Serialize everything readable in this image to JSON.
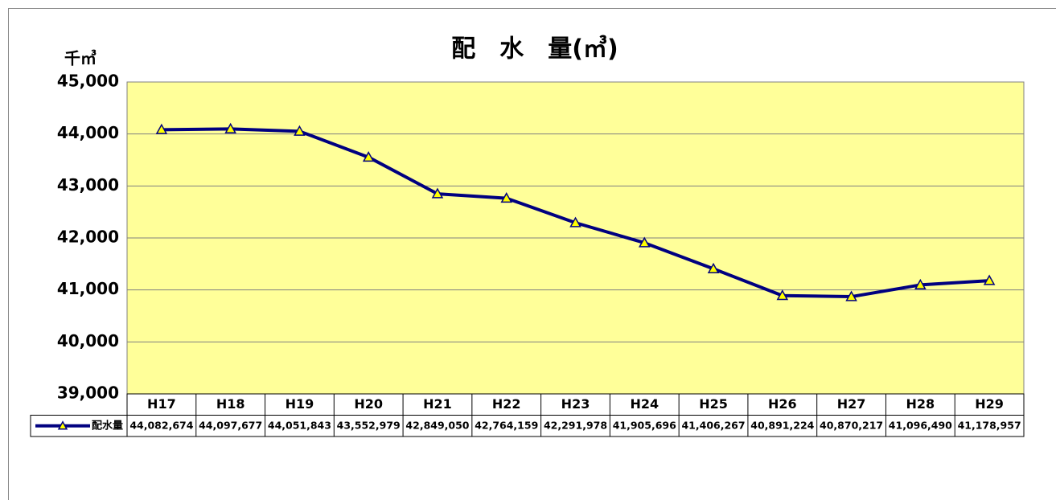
{
  "chart_data": {
    "type": "line",
    "title": "配　水　量(㎥)",
    "y_unit_label": "千㎥",
    "categories": [
      "H17",
      "H18",
      "H19",
      "H20",
      "H21",
      "H22",
      "H23",
      "H24",
      "H25",
      "H26",
      "H27",
      "H28",
      "H29"
    ],
    "series": [
      {
        "name": "配水量",
        "color": "#000080",
        "marker_color": "#ffff00",
        "values": [
          44082.674,
          44097.677,
          44051.843,
          43552.979,
          42849.05,
          42764.159,
          42291.978,
          41905.696,
          41406.267,
          40891.224,
          40870.217,
          41096.49,
          41178.957
        ],
        "value_labels": [
          "44,082,674",
          "44,097,677",
          "44,051,843",
          "43,552,979",
          "42,849,050",
          "42,764,159",
          "42,291,978",
          "41,905,696",
          "41,406,267",
          "40,891,224",
          "40,870,217",
          "41,096,490",
          "41,178,957"
        ]
      }
    ],
    "ylim": [
      39000,
      45000
    ],
    "yticks": [
      {
        "value": 39000,
        "label": "39,000"
      },
      {
        "value": 40000,
        "label": "40,000"
      },
      {
        "value": 41000,
        "label": "41,000"
      },
      {
        "value": 42000,
        "label": "42,000"
      },
      {
        "value": 43000,
        "label": "43,000"
      },
      {
        "value": 44000,
        "label": "44,000"
      },
      {
        "value": 45000,
        "label": "45,000"
      }
    ],
    "grid": true,
    "plot_background": "#ffff99"
  }
}
